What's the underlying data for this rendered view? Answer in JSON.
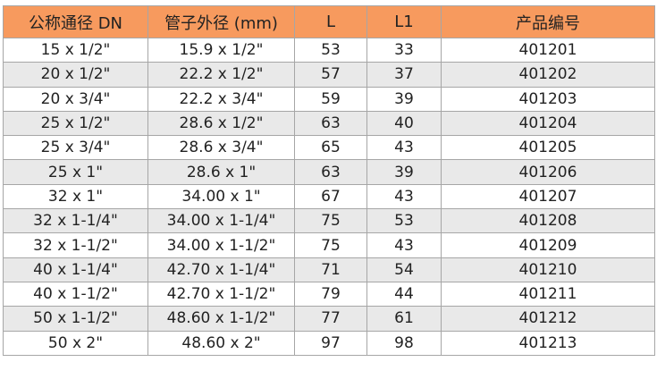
{
  "header_color": "#f79a5e",
  "headers": [
    "公称通径 DN",
    "管子外径 (mm)",
    "L",
    "L1",
    "产品编号"
  ],
  "rows": [
    [
      "15 x 1/2\"",
      "15.9 x 1/2\"",
      "53",
      "33",
      "401201"
    ],
    [
      "20 x 1/2\"",
      "22.2 x 1/2\"",
      "57",
      "37",
      "401202"
    ],
    [
      "20 x 3/4\"",
      "22.2 x 3/4\"",
      "59",
      "39",
      "401203"
    ],
    [
      "25 x 1/2\"",
      "28.6 x 1/2\"",
      "63",
      "40",
      "401204"
    ],
    [
      "25 x 3/4\"",
      "28.6 x 3/4\"",
      "65",
      "43",
      "401205"
    ],
    [
      "25 x 1\"",
      "28.6 x 1\"",
      "63",
      "39",
      "401206"
    ],
    [
      "32 x 1\"",
      "34.00 x 1\"",
      "67",
      "43",
      "401207"
    ],
    [
      "32 x 1-1/4\"",
      "34.00 x 1-1/4\"",
      "75",
      "53",
      "401208"
    ],
    [
      "32 x 1-1/2\"",
      "34.00 x 1-1/2\"",
      "75",
      "43",
      "401209"
    ],
    [
      "40 x 1-1/4\"",
      "42.70 x 1-1/4\"",
      "71",
      "54",
      "401210"
    ],
    [
      "40 x 1-1/2\"",
      "42.70 x 1-1/2\"",
      "79",
      "44",
      "401211"
    ],
    [
      "50 x 1-1/2\"",
      "48.60 x 1-1/2\"",
      "77",
      "61",
      "401212"
    ],
    [
      "50 x 2\"",
      "48.60 x 2\"",
      "97",
      "98",
      "401213"
    ]
  ]
}
